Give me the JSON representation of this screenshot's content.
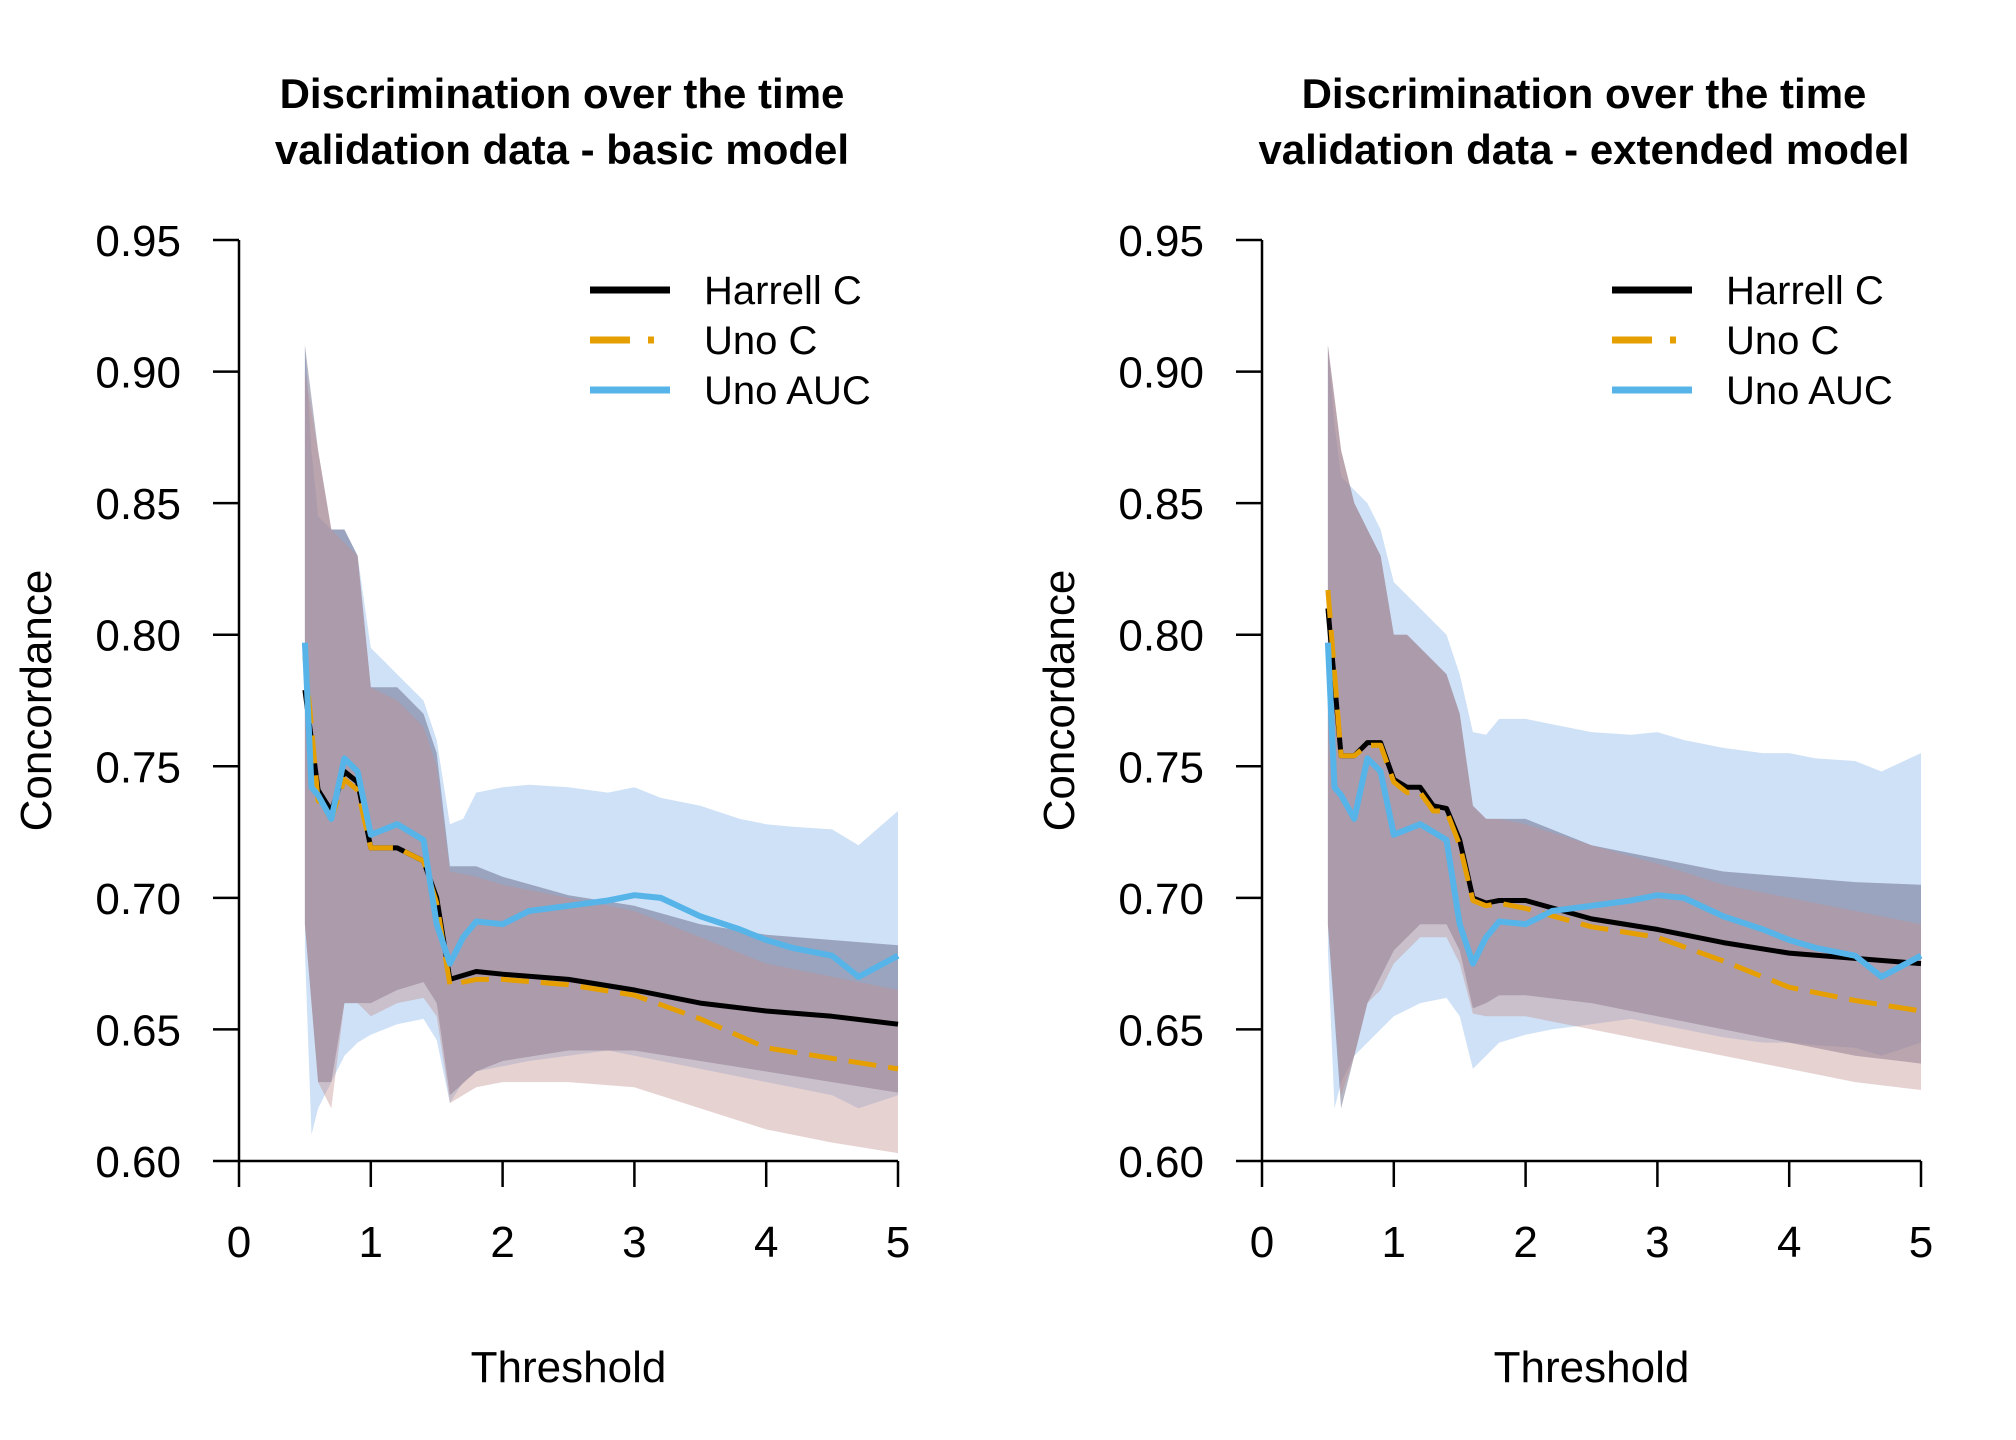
{
  "colors": {
    "harrell": "#000000",
    "uno_c": "#E69F00",
    "uno_auc": "#56B4E9",
    "band_harrell": "#5a5a7a",
    "band_uno_c": "#c48e8e",
    "band_uno_auc": "#a8c8ee"
  },
  "chart_data": [
    {
      "type": "line",
      "title": [
        "Discrimination over the time",
        "validation data - basic model"
      ],
      "xlabel": "Threshold",
      "ylabel": "Concordance",
      "xlim": [
        0,
        5
      ],
      "ylim": [
        0.6,
        0.95
      ],
      "xticks": [
        "0",
        "1",
        "2",
        "3",
        "4",
        "5"
      ],
      "yticks": [
        "0.60",
        "0.65",
        "0.70",
        "0.75",
        "0.80",
        "0.85",
        "0.90",
        "0.95"
      ],
      "legend": {
        "position": "top-right",
        "entries": [
          "Harrell C",
          "Uno C",
          "Uno AUC"
        ]
      },
      "series": [
        {
          "name": "Harrell C",
          "style": "solid",
          "x": [
            0.5,
            0.6,
            0.7,
            0.8,
            0.9,
            1.0,
            1.2,
            1.4,
            1.5,
            1.6,
            1.8,
            2.0,
            2.5,
            3.0,
            3.5,
            4.0,
            4.5,
            5.0
          ],
          "values": [
            0.779,
            0.741,
            0.733,
            0.748,
            0.744,
            0.719,
            0.719,
            0.714,
            0.7,
            0.669,
            0.672,
            0.671,
            0.669,
            0.665,
            0.66,
            0.657,
            0.655,
            0.652
          ],
          "band_lower": [
            0.69,
            0.63,
            0.63,
            0.66,
            0.66,
            0.66,
            0.665,
            0.668,
            0.66,
            0.625,
            0.634,
            0.638,
            0.642,
            0.642,
            0.638,
            0.634,
            0.63,
            0.626
          ],
          "band_upper": [
            0.91,
            0.87,
            0.84,
            0.84,
            0.83,
            0.78,
            0.78,
            0.77,
            0.755,
            0.712,
            0.712,
            0.708,
            0.701,
            0.697,
            0.69,
            0.686,
            0.684,
            0.682
          ]
        },
        {
          "name": "Uno C",
          "style": "dashed",
          "x": [
            0.5,
            0.6,
            0.7,
            0.8,
            0.9,
            1.0,
            1.2,
            1.4,
            1.5,
            1.6,
            1.8,
            2.0,
            2.5,
            3.0,
            3.5,
            4.0,
            4.5,
            5.0
          ],
          "values": [
            0.792,
            0.737,
            0.73,
            0.745,
            0.741,
            0.719,
            0.719,
            0.714,
            0.698,
            0.667,
            0.669,
            0.669,
            0.667,
            0.663,
            0.654,
            0.643,
            0.639,
            0.635
          ],
          "band_lower": [
            0.69,
            0.63,
            0.62,
            0.66,
            0.66,
            0.655,
            0.66,
            0.662,
            0.655,
            0.622,
            0.628,
            0.63,
            0.63,
            0.628,
            0.62,
            0.612,
            0.607,
            0.603
          ],
          "band_upper": [
            0.9,
            0.87,
            0.84,
            0.835,
            0.83,
            0.78,
            0.775,
            0.765,
            0.75,
            0.71,
            0.708,
            0.705,
            0.7,
            0.695,
            0.685,
            0.675,
            0.67,
            0.665
          ]
        },
        {
          "name": "Uno AUC",
          "style": "solid",
          "x": [
            0.5,
            0.55,
            0.6,
            0.7,
            0.8,
            0.9,
            1.0,
            1.2,
            1.4,
            1.5,
            1.6,
            1.7,
            1.8,
            2.0,
            2.2,
            2.5,
            2.8,
            3.0,
            3.2,
            3.5,
            3.8,
            4.0,
            4.2,
            4.5,
            4.7,
            5.0
          ],
          "values": [
            0.797,
            0.742,
            0.739,
            0.73,
            0.753,
            0.748,
            0.724,
            0.728,
            0.722,
            0.69,
            0.675,
            0.685,
            0.691,
            0.69,
            0.695,
            0.697,
            0.699,
            0.701,
            0.7,
            0.693,
            0.688,
            0.684,
            0.681,
            0.678,
            0.67,
            0.678
          ],
          "band_lower": [
            0.68,
            0.61,
            0.62,
            0.63,
            0.64,
            0.645,
            0.648,
            0.652,
            0.654,
            0.646,
            0.622,
            0.63,
            0.634,
            0.636,
            0.638,
            0.64,
            0.642,
            0.64,
            0.638,
            0.635,
            0.632,
            0.63,
            0.628,
            0.625,
            0.62,
            0.625
          ],
          "band_upper": [
            0.91,
            0.87,
            0.845,
            0.84,
            0.84,
            0.83,
            0.795,
            0.785,
            0.775,
            0.76,
            0.728,
            0.73,
            0.74,
            0.742,
            0.743,
            0.742,
            0.74,
            0.742,
            0.738,
            0.735,
            0.73,
            0.728,
            0.727,
            0.726,
            0.72,
            0.733
          ]
        }
      ]
    },
    {
      "type": "line",
      "title": [
        "Discrimination over the time",
        "validation data - extended model"
      ],
      "xlabel": "Threshold",
      "ylabel": "Concordance",
      "xlim": [
        0,
        5
      ],
      "ylim": [
        0.6,
        0.95
      ],
      "xticks": [
        "0",
        "1",
        "2",
        "3",
        "4",
        "5"
      ],
      "yticks": [
        "0.60",
        "0.65",
        "0.70",
        "0.75",
        "0.80",
        "0.85",
        "0.90",
        "0.95"
      ],
      "legend": {
        "position": "top-right",
        "entries": [
          "Harrell C",
          "Uno C",
          "Uno AUC"
        ]
      },
      "series": [
        {
          "name": "Harrell C",
          "style": "solid",
          "x": [
            0.5,
            0.6,
            0.7,
            0.8,
            0.9,
            1.0,
            1.1,
            1.2,
            1.3,
            1.4,
            1.5,
            1.6,
            1.7,
            1.8,
            2.0,
            2.5,
            3.0,
            3.5,
            4.0,
            4.5,
            5.0
          ],
          "values": [
            0.81,
            0.754,
            0.754,
            0.759,
            0.759,
            0.745,
            0.742,
            0.742,
            0.735,
            0.734,
            0.722,
            0.7,
            0.698,
            0.699,
            0.699,
            0.692,
            0.688,
            0.683,
            0.679,
            0.677,
            0.675
          ],
          "band_lower": [
            0.69,
            0.62,
            0.64,
            0.66,
            0.67,
            0.68,
            0.685,
            0.69,
            0.69,
            0.69,
            0.68,
            0.658,
            0.66,
            0.663,
            0.663,
            0.66,
            0.655,
            0.65,
            0.645,
            0.64,
            0.637
          ],
          "band_upper": [
            0.91,
            0.87,
            0.85,
            0.84,
            0.83,
            0.8,
            0.8,
            0.795,
            0.79,
            0.785,
            0.77,
            0.735,
            0.73,
            0.73,
            0.73,
            0.72,
            0.715,
            0.71,
            0.708,
            0.706,
            0.705
          ]
        },
        {
          "name": "Uno C",
          "style": "dashed",
          "x": [
            0.5,
            0.6,
            0.7,
            0.8,
            0.9,
            1.0,
            1.1,
            1.2,
            1.3,
            1.4,
            1.5,
            1.6,
            1.7,
            1.8,
            2.0,
            2.5,
            3.0,
            3.5,
            4.0,
            4.5,
            5.0
          ],
          "values": [
            0.817,
            0.754,
            0.754,
            0.758,
            0.758,
            0.744,
            0.74,
            0.74,
            0.733,
            0.733,
            0.72,
            0.699,
            0.697,
            0.698,
            0.696,
            0.689,
            0.685,
            0.676,
            0.666,
            0.661,
            0.657
          ],
          "band_lower": [
            0.69,
            0.625,
            0.64,
            0.66,
            0.665,
            0.675,
            0.68,
            0.685,
            0.685,
            0.685,
            0.675,
            0.656,
            0.655,
            0.655,
            0.655,
            0.65,
            0.645,
            0.64,
            0.635,
            0.63,
            0.627
          ],
          "band_upper": [
            0.91,
            0.87,
            0.85,
            0.84,
            0.83,
            0.8,
            0.8,
            0.795,
            0.79,
            0.785,
            0.77,
            0.735,
            0.73,
            0.73,
            0.728,
            0.72,
            0.713,
            0.705,
            0.7,
            0.695,
            0.69
          ]
        },
        {
          "name": "Uno AUC",
          "style": "solid",
          "x": [
            0.5,
            0.55,
            0.6,
            0.7,
            0.8,
            0.9,
            1.0,
            1.2,
            1.4,
            1.5,
            1.6,
            1.7,
            1.8,
            2.0,
            2.2,
            2.5,
            2.8,
            3.0,
            3.2,
            3.5,
            3.8,
            4.0,
            4.2,
            4.5,
            4.7,
            5.0
          ],
          "values": [
            0.797,
            0.742,
            0.739,
            0.73,
            0.753,
            0.748,
            0.724,
            0.728,
            0.722,
            0.69,
            0.675,
            0.685,
            0.691,
            0.69,
            0.695,
            0.697,
            0.699,
            0.701,
            0.7,
            0.693,
            0.688,
            0.684,
            0.681,
            0.678,
            0.67,
            0.678
          ],
          "band_lower": [
            0.68,
            0.62,
            0.63,
            0.64,
            0.645,
            0.65,
            0.655,
            0.66,
            0.662,
            0.655,
            0.635,
            0.64,
            0.645,
            0.648,
            0.65,
            0.652,
            0.654,
            0.652,
            0.65,
            0.647,
            0.645,
            0.645,
            0.644,
            0.643,
            0.64,
            0.645
          ],
          "band_upper": [
            0.91,
            0.88,
            0.86,
            0.855,
            0.85,
            0.84,
            0.82,
            0.81,
            0.8,
            0.785,
            0.763,
            0.762,
            0.768,
            0.768,
            0.766,
            0.763,
            0.762,
            0.763,
            0.76,
            0.757,
            0.755,
            0.755,
            0.753,
            0.752,
            0.748,
            0.755
          ]
        }
      ]
    }
  ]
}
